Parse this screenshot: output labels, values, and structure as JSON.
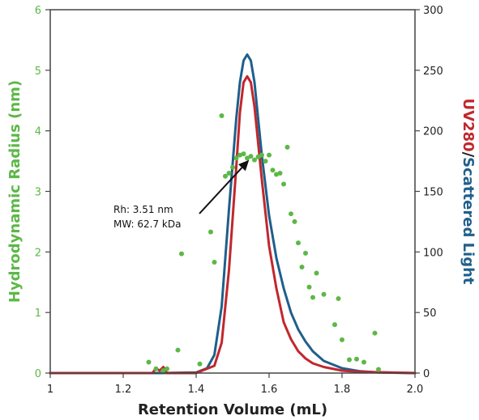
{
  "chart_data": {
    "type": "line",
    "xlabel": "Retention Volume (mL)",
    "ylabel_left": "Hydrodynamic Radius (nm)",
    "ylabel_right_parts": [
      {
        "text": "UV280",
        "color": "#c1272d"
      },
      {
        "text": "/",
        "color": "#222222"
      },
      {
        "text": "Scattered Light",
        "color": "#1f5f8b"
      }
    ],
    "xlim": [
      1.0,
      2.0
    ],
    "ylim_left": [
      0,
      6
    ],
    "ylim_right": [
      0,
      300
    ],
    "x_ticks": [
      1,
      1.2,
      1.4,
      1.6,
      1.8,
      2.0
    ],
    "x_tick_labels": [
      "1",
      "1.2",
      "1.4",
      "1.6",
      "1.8",
      "2.0"
    ],
    "y_left_ticks": [
      0,
      1,
      2,
      3,
      4,
      5,
      6
    ],
    "y_left_tick_labels": [
      "0",
      "1",
      "2",
      "3",
      "4",
      "5",
      "6"
    ],
    "y_right_ticks": [
      0,
      50,
      100,
      150,
      200,
      250,
      300
    ],
    "y_right_tick_labels": [
      "0",
      "50",
      "100",
      "150",
      "200",
      "250",
      "300"
    ],
    "grid": false,
    "colors": {
      "radius": "#5cb847",
      "uv": "#c1272d",
      "scatter": "#1f5f8b",
      "axis": "#444444"
    },
    "series": [
      {
        "axis": "right",
        "style": "line",
        "color": "#1f5f8b",
        "x": [
          1.0,
          1.2,
          1.3,
          1.4,
          1.43,
          1.45,
          1.47,
          1.49,
          1.51,
          1.52,
          1.53,
          1.54,
          1.55,
          1.56,
          1.57,
          1.58,
          1.6,
          1.62,
          1.64,
          1.66,
          1.68,
          1.7,
          1.72,
          1.75,
          1.8,
          1.85,
          1.9,
          2.0
        ],
        "y": [
          0,
          0,
          0,
          0.5,
          4,
          15,
          55,
          135,
          210,
          240,
          258,
          263,
          258,
          240,
          210,
          180,
          130,
          95,
          70,
          50,
          36,
          26,
          18,
          10,
          4,
          1.5,
          0.5,
          0
        ]
      },
      {
        "axis": "right",
        "style": "line",
        "color": "#c1272d",
        "x": [
          1.0,
          1.2,
          1.28,
          1.29,
          1.3,
          1.31,
          1.32,
          1.4,
          1.45,
          1.47,
          1.49,
          1.51,
          1.52,
          1.53,
          1.54,
          1.55,
          1.56,
          1.57,
          1.58,
          1.6,
          1.62,
          1.64,
          1.66,
          1.68,
          1.7,
          1.72,
          1.75,
          1.8,
          1.85,
          2.0
        ],
        "y": [
          0,
          0,
          0,
          4,
          2,
          5,
          0,
          0,
          6,
          25,
          85,
          170,
          215,
          240,
          245,
          240,
          220,
          190,
          160,
          105,
          70,
          42,
          28,
          18,
          12,
          8,
          5,
          2,
          1,
          0
        ]
      },
      {
        "axis": "left",
        "style": "scatter",
        "color": "#5cb847",
        "x": [
          1.27,
          1.29,
          1.31,
          1.32,
          1.35,
          1.36,
          1.41,
          1.44,
          1.45,
          1.47,
          1.48,
          1.49,
          1.5,
          1.51,
          1.52,
          1.53,
          1.54,
          1.55,
          1.56,
          1.57,
          1.58,
          1.59,
          1.6,
          1.61,
          1.62,
          1.63,
          1.64,
          1.65,
          1.66,
          1.67,
          1.68,
          1.69,
          1.7,
          1.71,
          1.72,
          1.73,
          1.75,
          1.78,
          1.79,
          1.8,
          1.82,
          1.84,
          1.86,
          1.89,
          1.9
        ],
        "y": [
          0.18,
          0.07,
          0.04,
          0.07,
          0.38,
          1.97,
          0.15,
          2.33,
          1.83,
          4.25,
          3.25,
          3.3,
          3.4,
          3.55,
          3.6,
          3.62,
          3.55,
          3.58,
          3.52,
          3.57,
          3.6,
          3.5,
          3.6,
          3.35,
          3.28,
          3.3,
          3.12,
          3.73,
          2.63,
          2.5,
          2.15,
          1.75,
          1.98,
          1.42,
          1.25,
          1.65,
          1.3,
          0.8,
          1.23,
          0.55,
          0.22,
          0.23,
          0.18,
          0.66,
          0.06
        ]
      }
    ],
    "annotation": {
      "lines": [
        "Rh: 3.51 nm",
        "MW: 62.7 kDa"
      ],
      "arrow_to": {
        "x": 1.545,
        "y": 3.52
      }
    }
  }
}
